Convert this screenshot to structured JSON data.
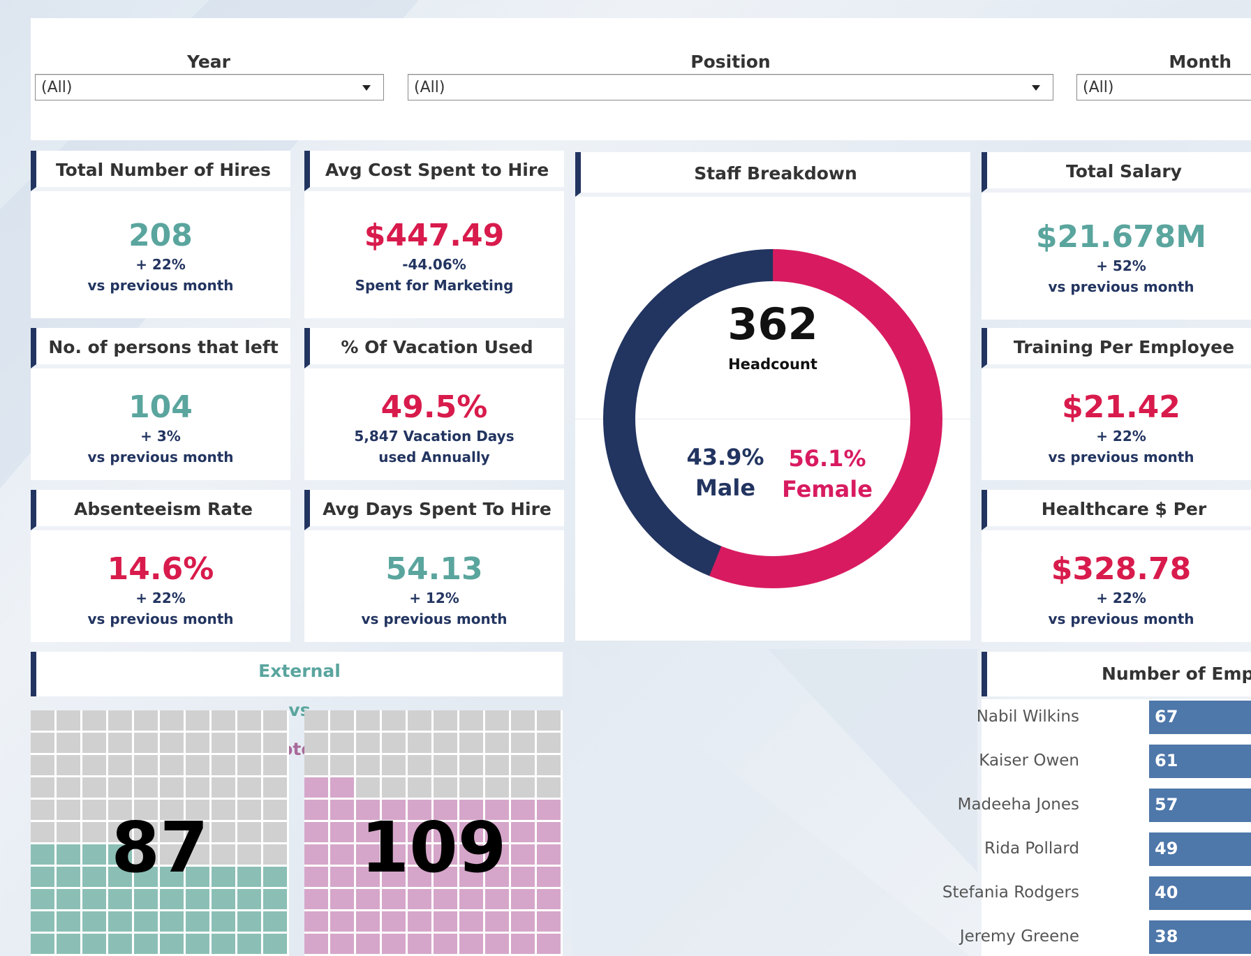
{
  "filters": {
    "year": {
      "label": "Year",
      "value": "(All)"
    },
    "position": {
      "label": "Position",
      "value": "(All)"
    },
    "month": {
      "label": "Month",
      "value": "(All)"
    }
  },
  "kpis": {
    "hires": {
      "title": "Total Number of Hires",
      "value": "208",
      "change": "+ 22%",
      "note": "vs previous month"
    },
    "cost": {
      "title": "Avg Cost Spent to Hire",
      "value": "$447.49",
      "change": "-44.06%",
      "note": "Spent for Marketing"
    },
    "left": {
      "title": "No. of persons that left",
      "value": "104",
      "change": "+ 3%",
      "note": "vs previous month"
    },
    "vacation": {
      "title": "% Of Vacation Used",
      "value": "49.5%",
      "change": "5,847 Vacation Days",
      "note": "used Annually"
    },
    "absent": {
      "title": "Absenteeism Rate",
      "value": "14.6%",
      "change": "+ 22%",
      "note": "vs previous month"
    },
    "days": {
      "title": "Avg Days Spent To Hire",
      "value": "54.13",
      "change": "+ 12%",
      "note": "vs previous month"
    },
    "salary": {
      "title": "Total Salary",
      "value": "$21.678M",
      "change": "+ 52%",
      "note": "vs previous month"
    },
    "training": {
      "title": "Training Per Employee",
      "value": "$21.42",
      "change": "+ 22%",
      "note": "vs previous month"
    },
    "health": {
      "title": "Healthcare $ Per",
      "value": "$328.78",
      "change": "+ 22%",
      "note": "vs previous month"
    }
  },
  "staff": {
    "title": "Staff Breakdown",
    "headcount": "362",
    "headcount_label": "Headcount",
    "male_pct": "43.9%",
    "male_label": "Male",
    "female_pct": "56.1%",
    "female_label": "Female",
    "male_fraction": 0.439,
    "male_color": "#223460",
    "female_color": "#d81b60"
  },
  "hires_split": {
    "title_ext": "External",
    "title_vs": "vs",
    "title_int": "Internal Potential Hires",
    "external": "87",
    "internal": "109",
    "external_color": "#8bbfb5",
    "internal_color": "#d5a6c9",
    "empty_color": "#d0d0d0"
  },
  "employees": {
    "title": "Number of Employ",
    "rows": [
      {
        "name": "Nabil Wilkins",
        "value": "67"
      },
      {
        "name": "Kaiser Owen",
        "value": "61"
      },
      {
        "name": "Madeeha Jones",
        "value": "57"
      },
      {
        "name": "Rida Pollard",
        "value": "49"
      },
      {
        "name": "Stefania Rodgers",
        "value": "40"
      },
      {
        "name": "Jeremy Greene",
        "value": "38"
      }
    ]
  }
}
